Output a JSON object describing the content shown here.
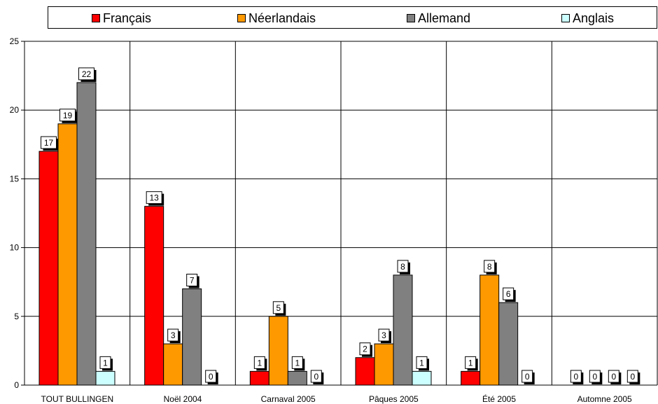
{
  "chart_data": {
    "type": "bar",
    "categories": [
      "TOUT BULLINGEN",
      "Noël 2004",
      "Carnaval 2005",
      "Pâques 2005",
      "Été 2005",
      "Automne 2005"
    ],
    "series": [
      {
        "name": "Français",
        "color": "#ff0000",
        "values": [
          17,
          13,
          1,
          2,
          1,
          0
        ]
      },
      {
        "name": "Néerlandais",
        "color": "#ff9900",
        "values": [
          19,
          3,
          5,
          3,
          8,
          0
        ]
      },
      {
        "name": "Allemand",
        "color": "#808080",
        "values": [
          22,
          7,
          1,
          8,
          6,
          0
        ]
      },
      {
        "name": "Anglais",
        "color": "#ccffff",
        "values": [
          1,
          0,
          0,
          1,
          0,
          0
        ]
      }
    ],
    "ylim": [
      0,
      25
    ],
    "yticks": [
      0,
      5,
      10,
      15,
      20,
      25
    ],
    "grid": true,
    "legend_position": "top",
    "data_labels": true
  }
}
